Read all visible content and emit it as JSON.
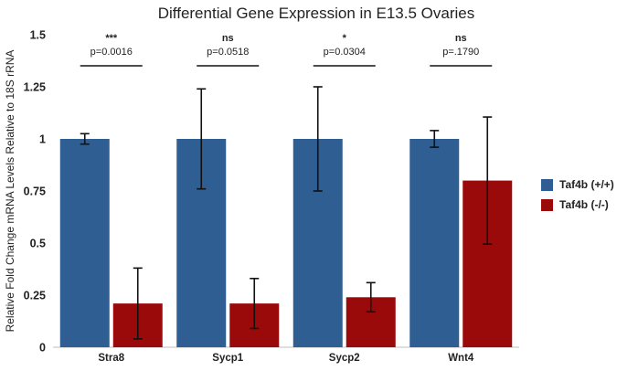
{
  "chart_data": {
    "type": "bar",
    "title": "Differential Gene Expression  in E13.5 Ovaries",
    "ylabel": "Relative Fold Change mRNA Levels Relative to 18S rRNA",
    "xlabel": "",
    "ylim": [
      0,
      1.5
    ],
    "yticks": [
      "0",
      "0.25",
      "0.5",
      "0.75",
      "1",
      "1.25",
      "1.5"
    ],
    "categories": [
      "Stra8",
      "Sycp1",
      "Sycp2",
      "Wnt4"
    ],
    "series": [
      {
        "name": "Taf4b (+/+)",
        "color": "#2f5e93",
        "values": [
          1.0,
          1.0,
          1.0,
          1.0
        ],
        "errors": [
          0.025,
          0.24,
          0.25,
          0.04
        ]
      },
      {
        "name": "Taf4b (-/-)",
        "color": "#9b0a0a",
        "values": [
          0.21,
          0.21,
          0.24,
          0.8
        ],
        "errors": [
          0.17,
          0.12,
          0.07,
          0.305
        ]
      }
    ],
    "annotations": [
      {
        "stars": "***",
        "pvalue": "p=0.0016"
      },
      {
        "stars": "ns",
        "pvalue": "p=0.0518"
      },
      {
        "stars": "*",
        "pvalue": "p=0.0304"
      },
      {
        "stars": "ns",
        "pvalue": "p=.1790"
      }
    ],
    "legend_position": "right",
    "grid": false
  }
}
